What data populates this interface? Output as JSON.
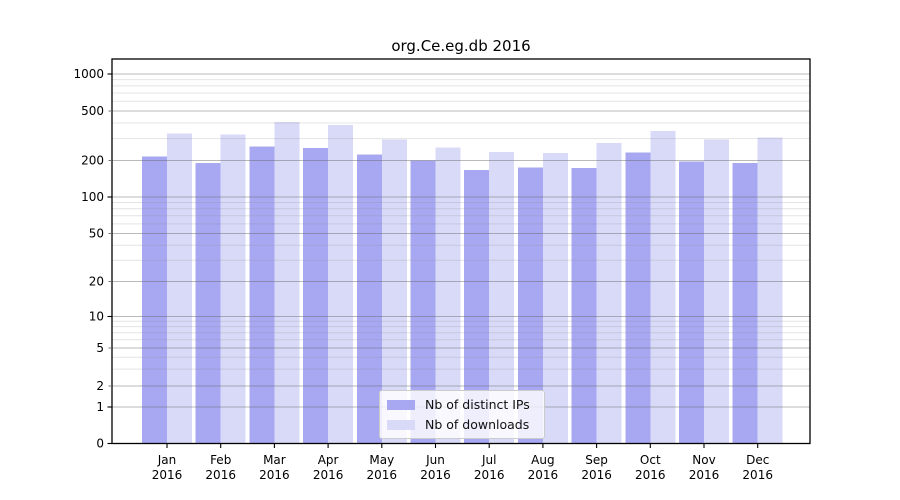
{
  "chart_data": {
    "type": "bar",
    "title": "org.Ce.eg.db 2016",
    "categories": [
      "Jan",
      "Feb",
      "Mar",
      "Apr",
      "May",
      "Jun",
      "Jul",
      "Aug",
      "Sep",
      "Oct",
      "Nov",
      "Dec"
    ],
    "category_year": "2016",
    "series": [
      {
        "name": "Nb of distinct IPs",
        "color": "#a8a8f2",
        "values": [
          215,
          190,
          260,
          252,
          223,
          200,
          167,
          175,
          173,
          232,
          197,
          191
        ]
      },
      {
        "name": "Nb of downloads",
        "color": "#d9daf8",
        "values": [
          330,
          323,
          408,
          386,
          294,
          255,
          233,
          230,
          276,
          344,
          296,
          305
        ]
      }
    ],
    "xlabel": "",
    "ylabel": "",
    "yscale": "symlog-1-2-5",
    "y_ticks": [
      0,
      1,
      2,
      5,
      10,
      20,
      50,
      100,
      200,
      500,
      1000
    ],
    "y_minor_ticks": [
      3,
      4,
      6,
      7,
      8,
      9,
      30,
      40,
      60,
      70,
      80,
      90,
      300,
      400,
      600,
      700,
      800,
      900
    ],
    "ylim": [
      0,
      1300
    ],
    "grid": "on",
    "legend_position": "bottom-center"
  }
}
